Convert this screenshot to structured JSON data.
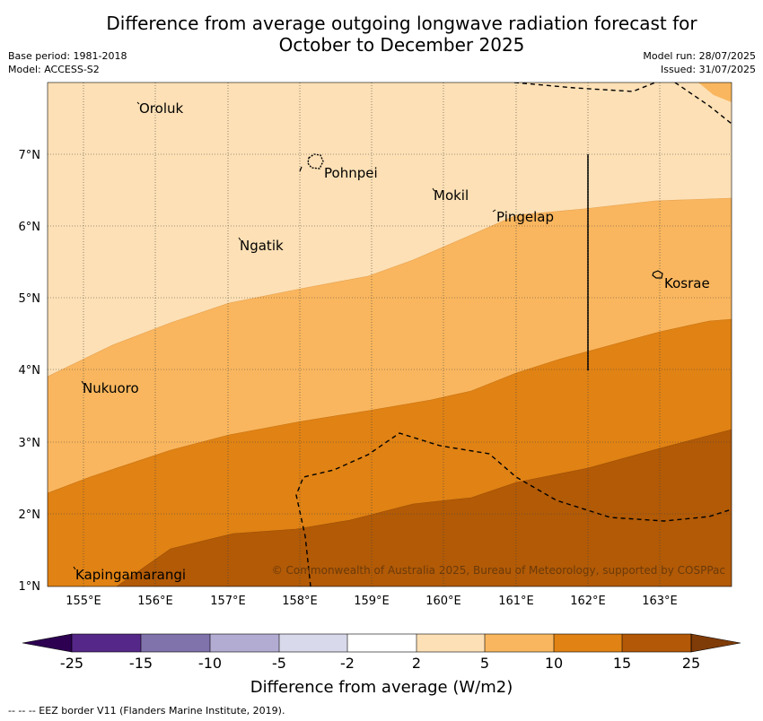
{
  "header": {
    "title_line1": "Difference from average outgoing longwave radiation forecast for",
    "title_line2": "October to December 2025",
    "base_period": "Base period: 1981-2018",
    "model": "Model: ACCESS-S2",
    "model_run": "Model run: 28/07/2025",
    "issued": "Issued: 31/07/2025"
  },
  "map": {
    "x_ticks": [
      "155°E",
      "156°E",
      "157°E",
      "158°E",
      "159°E",
      "160°E",
      "161°E",
      "162°E",
      "163°E"
    ],
    "y_ticks": [
      "7°N",
      "6°N",
      "5°N",
      "4°N",
      "3°N",
      "2°N",
      "1°N"
    ],
    "places": [
      {
        "name": "Oroluk"
      },
      {
        "name": "Pohnpei"
      },
      {
        "name": "Mokil"
      },
      {
        "name": "Pingelap"
      },
      {
        "name": "Ngatik"
      },
      {
        "name": "Kosrae"
      },
      {
        "name": "Nukuoro"
      },
      {
        "name": "Kapingamarangi"
      }
    ],
    "copyright": "© Commonwealth of Australia 2025, Bureau of Meteorology, supported by COSPPac",
    "colors": {
      "band_2_5": "#fde0b5",
      "band_5_10": "#f9b65e",
      "band_10_15": "#e08214",
      "band_15_25": "#b25a06"
    }
  },
  "colorbar": {
    "ticks": [
      "-25",
      "-15",
      "-10",
      "-5",
      "-2",
      "2",
      "5",
      "10",
      "15",
      "25"
    ],
    "colors": [
      "#2d0052",
      "#542788",
      "#8073ac",
      "#b2abd2",
      "#d8daeb",
      "#ffffff",
      "#fee0b6",
      "#f9b65e",
      "#e08214",
      "#b35806",
      "#7f3b08"
    ],
    "label": "Difference from average (W/m2)"
  },
  "footnote": "--  --  -- EEZ border V11 (Flanders Marine Institute, 2019)."
}
